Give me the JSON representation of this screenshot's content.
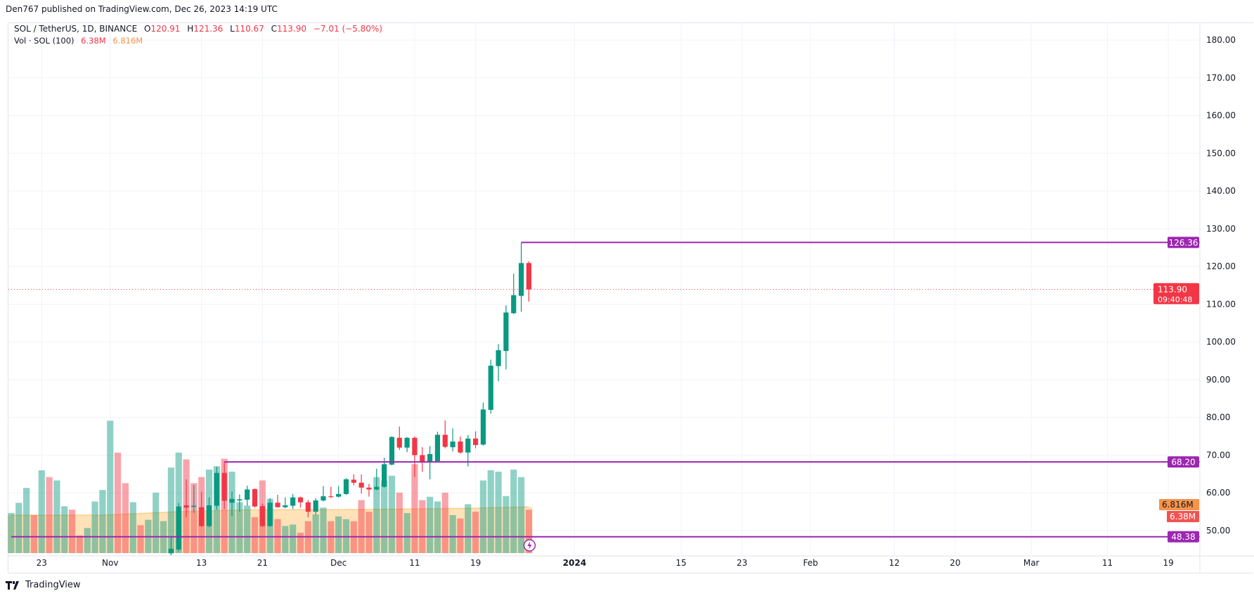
{
  "header": {
    "published": "Den767 published on TradingView.com, Dec 26, 2023 14:19 UTC"
  },
  "legend": {
    "symbol": "SOL / TetherUS, 1D, BINANCE",
    "open_label": "O",
    "open": "120.91",
    "high_label": "H",
    "high": "121.36",
    "low_label": "L",
    "low": "110.67",
    "close_label": "C",
    "close": "113.90",
    "change": "−7.01 (−5.80%)",
    "vol_label": "Vol · SOL (100)",
    "vol_value": "6.38M",
    "vol_ma_value": "6.816M"
  },
  "brand": {
    "name": "TradingView"
  },
  "colors": {
    "up": "#089981",
    "down": "#f23645",
    "level": "#9c27b0",
    "vol_ma": "#f7934a",
    "vol_label": "#f05350"
  },
  "chart_data": {
    "type": "candlestick",
    "title": "",
    "y_axis": {
      "ticks": [
        "50.00",
        "60.00",
        "70.00",
        "80.00",
        "90.00",
        "100.00",
        "110.00",
        "120.00",
        "130.00",
        "140.00",
        "150.00",
        "160.00",
        "170.00",
        "180.00"
      ],
      "range": [
        44,
        186
      ]
    },
    "x_axis": {
      "ticks": [
        {
          "label": "23",
          "date": "2023-10-23"
        },
        {
          "label": "Nov",
          "date": "2023-11-01"
        },
        {
          "label": "13",
          "date": "2023-11-13"
        },
        {
          "label": "21",
          "date": "2023-11-21"
        },
        {
          "label": "Dec",
          "date": "2023-12-01"
        },
        {
          "label": "11",
          "date": "2023-12-11"
        },
        {
          "label": "19",
          "date": "2023-12-19"
        },
        {
          "label": "2024",
          "date": "2024-01-01"
        },
        {
          "label": "15",
          "date": "2024-01-15"
        },
        {
          "label": "23",
          "date": "2024-01-23"
        },
        {
          "label": "Feb",
          "date": "2024-02-01"
        },
        {
          "label": "12",
          "date": "2024-02-12"
        },
        {
          "label": "20",
          "date": "2024-02-20"
        },
        {
          "label": "Mar",
          "date": "2024-03-01"
        },
        {
          "label": "11",
          "date": "2024-03-11"
        },
        {
          "label": "19",
          "date": "2024-03-19"
        }
      ]
    },
    "grid": true,
    "candles_start_date": "2023-11-09",
    "candles": [
      [
        44.0,
        48.4,
        43.5,
        45.2
      ],
      [
        45.0,
        57.3,
        44.5,
        56.4
      ],
      [
        56.7,
        63.6,
        53.5,
        56.1
      ],
      [
        56.3,
        62.1,
        54.7,
        56.6
      ],
      [
        56.2,
        60.2,
        51.0,
        51.2
      ],
      [
        51.2,
        58.8,
        50.9,
        56.7
      ],
      [
        56.6,
        66.9,
        55.5,
        65.3
      ],
      [
        65.3,
        68.2,
        55.7,
        57.9
      ],
      [
        57.4,
        60.4,
        53.9,
        58.4
      ],
      [
        58.0,
        59.6,
        55.0,
        58.3
      ],
      [
        58.2,
        61.9,
        56.6,
        60.9
      ],
      [
        61.0,
        61.2,
        56.1,
        56.4
      ],
      [
        56.5,
        57.2,
        51.0,
        51.2
      ],
      [
        51.2,
        58.6,
        51.0,
        57.4
      ],
      [
        57.4,
        59.5,
        56.1,
        56.2
      ],
      [
        56.2,
        58.8,
        56.0,
        56.7
      ],
      [
        56.6,
        59.7,
        55.7,
        58.8
      ],
      [
        58.8,
        59.0,
        56.1,
        57.5
      ],
      [
        57.5,
        58.1,
        53.5,
        55.0
      ],
      [
        55.0,
        58.6,
        54.3,
        58.0
      ],
      [
        58.0,
        61.8,
        57.7,
        59.1
      ],
      [
        59.1,
        61.6,
        58.6,
        58.9
      ],
      [
        59.0,
        61.8,
        58.8,
        59.7
      ],
      [
        59.7,
        63.9,
        59.5,
        63.6
      ],
      [
        63.5,
        64.9,
        62.0,
        62.7
      ],
      [
        62.7,
        64.9,
        59.8,
        61.4
      ],
      [
        61.4,
        62.4,
        59.0,
        60.9
      ],
      [
        60.9,
        66.4,
        60.7,
        61.6
      ],
      [
        61.6,
        69.3,
        61.4,
        67.6
      ],
      [
        67.5,
        75.0,
        67.3,
        74.8
      ],
      [
        74.6,
        77.6,
        71.4,
        72.0
      ],
      [
        72.0,
        74.8,
        70.8,
        74.6
      ],
      [
        74.6,
        75.0,
        64.2,
        70.0
      ],
      [
        70.0,
        72.1,
        65.6,
        68.1
      ],
      [
        68.1,
        72.4,
        63.6,
        70.3
      ],
      [
        68.4,
        76.2,
        68.2,
        75.4
      ],
      [
        75.4,
        79.2,
        71.8,
        72.2
      ],
      [
        72.1,
        77.1,
        71.0,
        73.6
      ],
      [
        73.6,
        74.9,
        70.4,
        70.7
      ],
      [
        70.7,
        75.3,
        67.0,
        74.4
      ],
      [
        74.4,
        76.3,
        71.8,
        72.7
      ],
      [
        72.8,
        83.9,
        72.5,
        82.1
      ],
      [
        82.0,
        95.3,
        81.0,
        93.7
      ],
      [
        93.6,
        99.4,
        89.6,
        97.8
      ],
      [
        97.6,
        109.7,
        92.7,
        107.8
      ],
      [
        107.6,
        118.1,
        107.4,
        112.4
      ],
      [
        112.2,
        126.36,
        108.0,
        120.9
      ],
      [
        120.91,
        121.36,
        110.67,
        113.9
      ]
    ],
    "volume_unit": "M",
    "volume_start_date": "2023-10-19",
    "volume": [
      [
        5.9,
        "up"
      ],
      [
        7.4,
        "up"
      ],
      [
        9.6,
        "up"
      ],
      [
        5.6,
        "down"
      ],
      [
        12.2,
        "up"
      ],
      [
        11.2,
        "down"
      ],
      [
        10.7,
        "up"
      ],
      [
        6.9,
        "up"
      ],
      [
        6.4,
        "down"
      ],
      [
        2.6,
        "down"
      ],
      [
        3.7,
        "up"
      ],
      [
        7.6,
        "up"
      ],
      [
        9.3,
        "up"
      ],
      [
        19.5,
        "up"
      ],
      [
        14.8,
        "down"
      ],
      [
        10.3,
        "down"
      ],
      [
        7.5,
        "up"
      ],
      [
        4.1,
        "down"
      ],
      [
        4.9,
        "up"
      ],
      [
        8.9,
        "up"
      ],
      [
        4.7,
        "up"
      ],
      [
        12.6,
        "up"
      ],
      [
        14.8,
        "up"
      ],
      [
        13.8,
        "down"
      ],
      [
        10.3,
        "down"
      ],
      [
        11.2,
        "down"
      ],
      [
        12.3,
        "up"
      ],
      [
        12.8,
        "up"
      ],
      [
        13.9,
        "down"
      ],
      [
        12.0,
        "up"
      ],
      [
        7.5,
        "up"
      ],
      [
        7.0,
        "up"
      ],
      [
        5.3,
        "down"
      ],
      [
        10.7,
        "down"
      ],
      [
        8.0,
        "up"
      ],
      [
        5.0,
        "down"
      ],
      [
        4.0,
        "up"
      ],
      [
        4.2,
        "up"
      ],
      [
        3.0,
        "down"
      ],
      [
        4.7,
        "down"
      ],
      [
        5.7,
        "up"
      ],
      [
        6.7,
        "up"
      ],
      [
        4.7,
        "down"
      ],
      [
        5.4,
        "up"
      ],
      [
        5.0,
        "up"
      ],
      [
        4.7,
        "down"
      ],
      [
        7.8,
        "down"
      ],
      [
        6.1,
        "down"
      ],
      [
        11.2,
        "up"
      ],
      [
        10.7,
        "up"
      ],
      [
        11.4,
        "up"
      ],
      [
        8.9,
        "down"
      ],
      [
        5.9,
        "up"
      ],
      [
        13.1,
        "down"
      ],
      [
        7.8,
        "down"
      ],
      [
        8.3,
        "up"
      ],
      [
        7.6,
        "up"
      ],
      [
        8.9,
        "down"
      ],
      [
        5.6,
        "up"
      ],
      [
        5.1,
        "down"
      ],
      [
        7.2,
        "up"
      ],
      [
        6.1,
        "down"
      ],
      [
        10.7,
        "up"
      ],
      [
        12.2,
        "up"
      ],
      [
        12.0,
        "up"
      ],
      [
        8.4,
        "up"
      ],
      [
        12.3,
        "up"
      ],
      [
        11.2,
        "up"
      ],
      [
        6.38,
        "down"
      ]
    ],
    "volume_ma_100": [
      {
        "date": "2023-10-19",
        "value": 5.6
      },
      {
        "date": "2023-10-31",
        "value": 5.6
      },
      {
        "date": "2023-11-10",
        "value": 6.1
      },
      {
        "date": "2023-11-20",
        "value": 6.4
      },
      {
        "date": "2023-12-01",
        "value": 6.4
      },
      {
        "date": "2023-12-10",
        "value": 6.5
      },
      {
        "date": "2023-12-18",
        "value": 6.6
      },
      {
        "date": "2023-12-26",
        "value": 6.816
      }
    ],
    "levels": [
      {
        "value": 126.36,
        "label": "126.36",
        "from": "2023-12-25"
      },
      {
        "value": 68.2,
        "label": "68.20",
        "from": "2023-11-16"
      },
      {
        "value": 48.38,
        "label": "48.38",
        "from": "2023-10-19"
      }
    ],
    "last_price": {
      "value": 113.9,
      "label": "113.90",
      "countdown": "09:40:48"
    },
    "volume_labels": {
      "ma": "6.816M",
      "last": "6.38M"
    }
  }
}
